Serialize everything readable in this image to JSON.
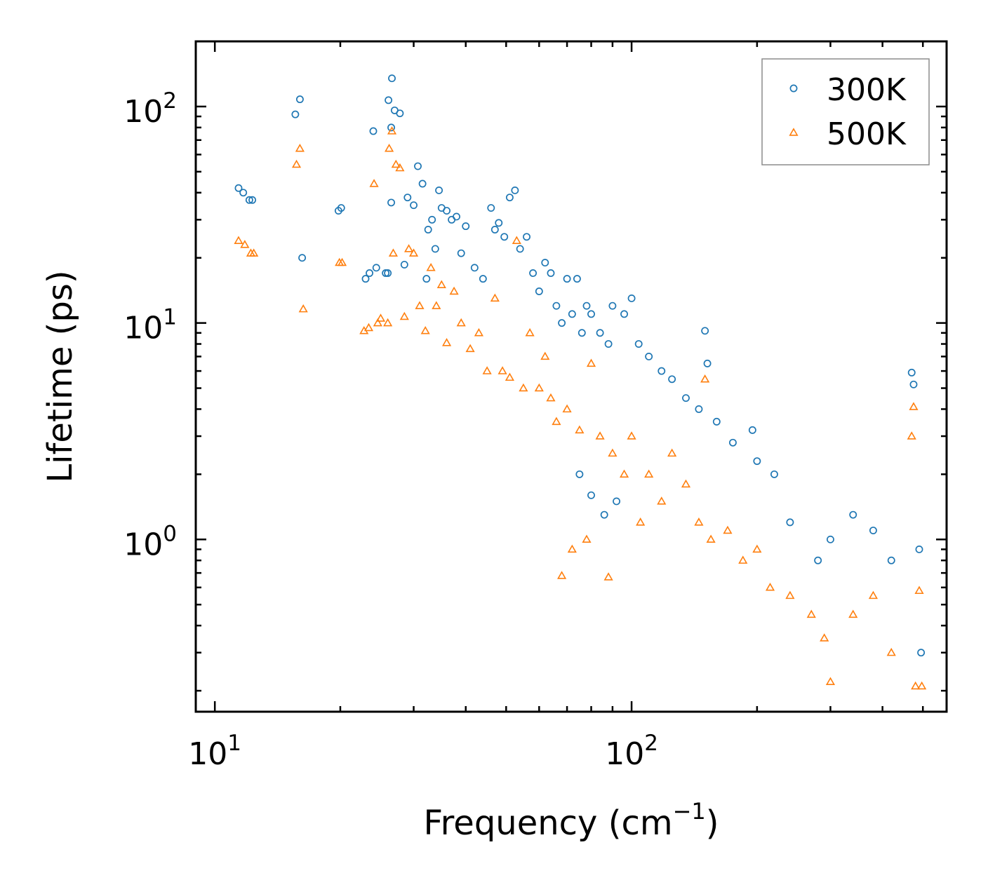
{
  "chart_data": {
    "type": "scatter",
    "title": "",
    "xlabel": "Frequency (cm",
    "xlabel_sup": "−1",
    "xlabel_end": ")",
    "ylabel": "Lifetime (ps)",
    "x_scale": "log",
    "y_scale": "log",
    "xlim": [
      9,
      570
    ],
    "ylim": [
      0.16,
      200
    ],
    "x_ticks": [
      {
        "value": 10,
        "base": "10",
        "exp": "1"
      },
      {
        "value": 100,
        "base": "10",
        "exp": "2"
      }
    ],
    "y_ticks": [
      {
        "value": 1,
        "base": "10",
        "exp": "0"
      },
      {
        "value": 10,
        "base": "10",
        "exp": "1"
      },
      {
        "value": 100,
        "base": "10",
        "exp": "2"
      }
    ],
    "legend_position": "top-right",
    "series": [
      {
        "name": "300K",
        "marker": "circle",
        "color": "#1f77b4",
        "points": [
          [
            11.4,
            42
          ],
          [
            11.7,
            40
          ],
          [
            12.1,
            37
          ],
          [
            12.3,
            37
          ],
          [
            15.6,
            92
          ],
          [
            16.0,
            108
          ],
          [
            16.2,
            20
          ],
          [
            19.8,
            33
          ],
          [
            20.1,
            34
          ],
          [
            23.0,
            16
          ],
          [
            23.5,
            17
          ],
          [
            24.0,
            77
          ],
          [
            24.4,
            18
          ],
          [
            25.7,
            17
          ],
          [
            26.0,
            17
          ],
          [
            26.1,
            107
          ],
          [
            26.5,
            80
          ],
          [
            26.5,
            36
          ],
          [
            26.6,
            135
          ],
          [
            27.0,
            96
          ],
          [
            27.8,
            93
          ],
          [
            28.5,
            18.6
          ],
          [
            29.0,
            38
          ],
          [
            30.0,
            35
          ],
          [
            30.7,
            53
          ],
          [
            31.5,
            44
          ],
          [
            32.2,
            16
          ],
          [
            32.5,
            27
          ],
          [
            33.2,
            30
          ],
          [
            33.8,
            22
          ],
          [
            34.5,
            41
          ],
          [
            35.0,
            34
          ],
          [
            36.0,
            33
          ],
          [
            37.0,
            30
          ],
          [
            38.0,
            31
          ],
          [
            39.0,
            21
          ],
          [
            40.0,
            28
          ],
          [
            42.0,
            18
          ],
          [
            44.0,
            16
          ],
          [
            46.0,
            34
          ],
          [
            47.0,
            27
          ],
          [
            48.0,
            29
          ],
          [
            49.5,
            25
          ],
          [
            51.0,
            38
          ],
          [
            52.5,
            41
          ],
          [
            54.0,
            22
          ],
          [
            56.0,
            25
          ],
          [
            58.0,
            17
          ],
          [
            60.0,
            14
          ],
          [
            62.0,
            19
          ],
          [
            64.0,
            17
          ],
          [
            66.0,
            12
          ],
          [
            68.0,
            10
          ],
          [
            70.0,
            16
          ],
          [
            72.0,
            11
          ],
          [
            74.0,
            16
          ],
          [
            76.0,
            9
          ],
          [
            78.0,
            12
          ],
          [
            80.0,
            11
          ],
          [
            84.0,
            9
          ],
          [
            88.0,
            8
          ],
          [
            90.0,
            12
          ],
          [
            96.0,
            11
          ],
          [
            100.0,
            13
          ],
          [
            104.0,
            8
          ],
          [
            110.0,
            7
          ],
          [
            118.0,
            6
          ],
          [
            125.0,
            5.5
          ],
          [
            135.0,
            4.5
          ],
          [
            145.0,
            4.0
          ],
          [
            150.0,
            9.2
          ],
          [
            152.0,
            6.5
          ],
          [
            160.0,
            3.5
          ],
          [
            175.0,
            2.8
          ],
          [
            195.0,
            3.2
          ],
          [
            200.0,
            2.3
          ],
          [
            220.0,
            2.0
          ],
          [
            240.0,
            1.2
          ],
          [
            280.0,
            0.8
          ],
          [
            300.0,
            1.0
          ],
          [
            340.0,
            1.3
          ],
          [
            380.0,
            1.1
          ],
          [
            420.0,
            0.8
          ],
          [
            470.0,
            5.9
          ],
          [
            475.0,
            5.2
          ],
          [
            490.0,
            0.9
          ],
          [
            495.0,
            0.3
          ],
          [
            75.0,
            2.0
          ],
          [
            80.0,
            1.6
          ],
          [
            86.0,
            1.3
          ],
          [
            92.0,
            1.5
          ]
        ]
      },
      {
        "name": "500K",
        "marker": "triangle",
        "color": "#ff7f0e",
        "points": [
          [
            11.4,
            24
          ],
          [
            11.8,
            23
          ],
          [
            12.2,
            21
          ],
          [
            12.4,
            21
          ],
          [
            15.7,
            54
          ],
          [
            16.0,
            64
          ],
          [
            16.3,
            11.6
          ],
          [
            19.9,
            19
          ],
          [
            20.2,
            19
          ],
          [
            22.8,
            9.2
          ],
          [
            23.4,
            9.5
          ],
          [
            24.1,
            44
          ],
          [
            24.6,
            10
          ],
          [
            25.0,
            10.5
          ],
          [
            26.0,
            10
          ],
          [
            26.2,
            64
          ],
          [
            26.6,
            77
          ],
          [
            26.8,
            21
          ],
          [
            27.2,
            54
          ],
          [
            27.8,
            52
          ],
          [
            28.5,
            10.7
          ],
          [
            29.2,
            22
          ],
          [
            30.0,
            21
          ],
          [
            31.0,
            12
          ],
          [
            32.0,
            9.2
          ],
          [
            33.0,
            18
          ],
          [
            34.0,
            12
          ],
          [
            35.0,
            15
          ],
          [
            36.0,
            8.1
          ],
          [
            37.5,
            14
          ],
          [
            39.0,
            10
          ],
          [
            41.0,
            7.6
          ],
          [
            43.0,
            9.0
          ],
          [
            45.0,
            6.0
          ],
          [
            47.0,
            13
          ],
          [
            49.0,
            6.0
          ],
          [
            51.0,
            5.6
          ],
          [
            53.0,
            24
          ],
          [
            55.0,
            5.0
          ],
          [
            57.0,
            9.0
          ],
          [
            60.0,
            5.0
          ],
          [
            62.0,
            7.0
          ],
          [
            64.0,
            4.5
          ],
          [
            66.0,
            3.5
          ],
          [
            68.0,
            0.68
          ],
          [
            70.0,
            4.0
          ],
          [
            72.0,
            0.9
          ],
          [
            75.0,
            3.2
          ],
          [
            78.0,
            1.0
          ],
          [
            80.0,
            6.5
          ],
          [
            84.0,
            3.0
          ],
          [
            88.0,
            0.67
          ],
          [
            90.0,
            2.5
          ],
          [
            96.0,
            2.0
          ],
          [
            100.0,
            3.0
          ],
          [
            105.0,
            1.2
          ],
          [
            110.0,
            2.0
          ],
          [
            118.0,
            1.5
          ],
          [
            125.0,
            2.5
          ],
          [
            135.0,
            1.8
          ],
          [
            145.0,
            1.2
          ],
          [
            150.0,
            5.5
          ],
          [
            155.0,
            1.0
          ],
          [
            170.0,
            1.1
          ],
          [
            185.0,
            0.8
          ],
          [
            200.0,
            0.9
          ],
          [
            215.0,
            0.6
          ],
          [
            240.0,
            0.55
          ],
          [
            270.0,
            0.45
          ],
          [
            290.0,
            0.35
          ],
          [
            300.0,
            0.22
          ],
          [
            340.0,
            0.45
          ],
          [
            380.0,
            0.55
          ],
          [
            420.0,
            0.3
          ],
          [
            470.0,
            3.0
          ],
          [
            475.0,
            4.1
          ],
          [
            480.0,
            0.21
          ],
          [
            490.0,
            0.58
          ],
          [
            497.0,
            0.21
          ]
        ]
      }
    ]
  }
}
